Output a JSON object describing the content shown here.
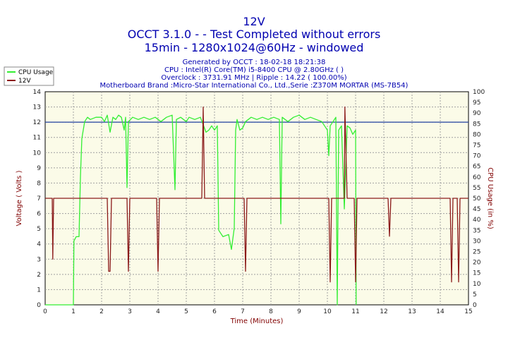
{
  "header": {
    "title": "12V",
    "subtitle1": "OCCT 3.1.0 -  - Test Completed without errors",
    "subtitle2": "15min - 1280x1024@60Hz - windowed",
    "info_lines": [
      "Generated by OCCT : 18-02-18 18:21:38",
      "CPU : Intel(R) Core(TM) i5-8400 CPU @ 2.80GHz (  )",
      "Overclock : 3731.91 MHz | Ripple : 14.22 ( 100.00%)",
      "Motherboard Brand :Micro-Star International Co., Ltd.,Serie :Z370M MORTAR (MS-7B54)"
    ]
  },
  "colors": {
    "background": "#ffffff",
    "plot_bg": "#fbfbe8",
    "grid": "#a0a0a0",
    "cpu_series": "#33ee33",
    "v12_series": "#8b1a1a",
    "reference_line": "#2040a0",
    "title": "#0000b0",
    "axis_label": "#800000"
  },
  "chart_data": {
    "type": "line",
    "xlabel": "Time (Minutes)",
    "ylabel_left": "Voltage ( Volts )",
    "ylabel_right": "CPU Usage (in %)",
    "xlim": [
      0,
      15
    ],
    "ylim_left": [
      0,
      14
    ],
    "ylim_right": [
      0,
      100
    ],
    "x_ticks": [
      0,
      1,
      2,
      3,
      4,
      5,
      6,
      7,
      8,
      9,
      10,
      11,
      12,
      13,
      14,
      15
    ],
    "y_ticks_left": [
      0,
      1,
      2,
      3,
      4,
      5,
      6,
      7,
      8,
      9,
      10,
      11,
      12,
      13,
      14
    ],
    "y_ticks_right": [
      0,
      5,
      10,
      15,
      20,
      25,
      30,
      35,
      40,
      45,
      50,
      55,
      60,
      65,
      70,
      75,
      80,
      85,
      90,
      95,
      100
    ],
    "grid": true,
    "legend_placement": "top-left",
    "reference_line_y": 12,
    "series": [
      {
        "name": "CPU Usage",
        "axis": "right",
        "points": [
          [
            0,
            0
          ],
          [
            1,
            0
          ],
          [
            1.02,
            30
          ],
          [
            1.1,
            32
          ],
          [
            1.2,
            32
          ],
          [
            1.25,
            60
          ],
          [
            1.3,
            78
          ],
          [
            1.4,
            86
          ],
          [
            1.5,
            88
          ],
          [
            1.6,
            87
          ],
          [
            1.8,
            88
          ],
          [
            2.0,
            88
          ],
          [
            2.1,
            86
          ],
          [
            2.2,
            89
          ],
          [
            2.3,
            81
          ],
          [
            2.4,
            88
          ],
          [
            2.5,
            87
          ],
          [
            2.6,
            89
          ],
          [
            2.7,
            88
          ],
          [
            2.8,
            82
          ],
          [
            2.85,
            88
          ],
          [
            2.9,
            55
          ],
          [
            2.95,
            86
          ],
          [
            3.1,
            88
          ],
          [
            3.3,
            87
          ],
          [
            3.5,
            88
          ],
          [
            3.7,
            87
          ],
          [
            3.9,
            88
          ],
          [
            4.1,
            86
          ],
          [
            4.3,
            88
          ],
          [
            4.5,
            89
          ],
          [
            4.6,
            54
          ],
          [
            4.65,
            87
          ],
          [
            4.8,
            88
          ],
          [
            5.0,
            86
          ],
          [
            5.1,
            88
          ],
          [
            5.3,
            87
          ],
          [
            5.5,
            88
          ],
          [
            5.7,
            81
          ],
          [
            5.8,
            82
          ],
          [
            5.9,
            84
          ],
          [
            6.0,
            82
          ],
          [
            6.1,
            84
          ],
          [
            6.15,
            35
          ],
          [
            6.3,
            32
          ],
          [
            6.5,
            33
          ],
          [
            6.6,
            26
          ],
          [
            6.7,
            36
          ],
          [
            6.75,
            82
          ],
          [
            6.8,
            87
          ],
          [
            6.9,
            82
          ],
          [
            7.0,
            83
          ],
          [
            7.1,
            86
          ],
          [
            7.3,
            88
          ],
          [
            7.5,
            87
          ],
          [
            7.7,
            88
          ],
          [
            7.9,
            87
          ],
          [
            8.1,
            88
          ],
          [
            8.3,
            87
          ],
          [
            8.35,
            38
          ],
          [
            8.4,
            88
          ],
          [
            8.6,
            86
          ],
          [
            8.8,
            88
          ],
          [
            9.0,
            89
          ],
          [
            9.2,
            87
          ],
          [
            9.4,
            88
          ],
          [
            9.6,
            87
          ],
          [
            9.8,
            86
          ],
          [
            9.9,
            84
          ],
          [
            10.0,
            82
          ],
          [
            10.05,
            70
          ],
          [
            10.1,
            84
          ],
          [
            10.2,
            86
          ],
          [
            10.3,
            88
          ],
          [
            10.35,
            0
          ],
          [
            10.4,
            82
          ],
          [
            10.5,
            84
          ],
          [
            10.6,
            45
          ],
          [
            10.7,
            84
          ],
          [
            10.8,
            83
          ],
          [
            10.9,
            80
          ],
          [
            11.0,
            82
          ],
          [
            11.02,
            0
          ]
        ]
      },
      {
        "name": "12V",
        "axis": "left",
        "points": [
          [
            0,
            7
          ],
          [
            0.25,
            7
          ],
          [
            0.27,
            3
          ],
          [
            0.3,
            7
          ],
          [
            2.2,
            7
          ],
          [
            2.25,
            2.2
          ],
          [
            2.3,
            2.2
          ],
          [
            2.35,
            7
          ],
          [
            2.9,
            7
          ],
          [
            2.95,
            2.2
          ],
          [
            3.0,
            7
          ],
          [
            3.95,
            7
          ],
          [
            4.0,
            2.2
          ],
          [
            4.05,
            7
          ],
          [
            5.55,
            7
          ],
          [
            5.6,
            13
          ],
          [
            5.65,
            7
          ],
          [
            7.05,
            7
          ],
          [
            7.1,
            2.2
          ],
          [
            7.15,
            7
          ],
          [
            10.05,
            7
          ],
          [
            10.1,
            1.5
          ],
          [
            10.15,
            7
          ],
          [
            10.6,
            7
          ],
          [
            10.62,
            13
          ],
          [
            10.7,
            7
          ],
          [
            10.95,
            7
          ],
          [
            11.0,
            1.5
          ],
          [
            11.05,
            7
          ],
          [
            12.15,
            7
          ],
          [
            12.2,
            4.5
          ],
          [
            12.25,
            7
          ],
          [
            14.35,
            7
          ],
          [
            14.4,
            1.5
          ],
          [
            14.45,
            7
          ],
          [
            14.6,
            7
          ],
          [
            14.65,
            1.5
          ],
          [
            14.7,
            7
          ],
          [
            15,
            7
          ]
        ]
      }
    ]
  }
}
